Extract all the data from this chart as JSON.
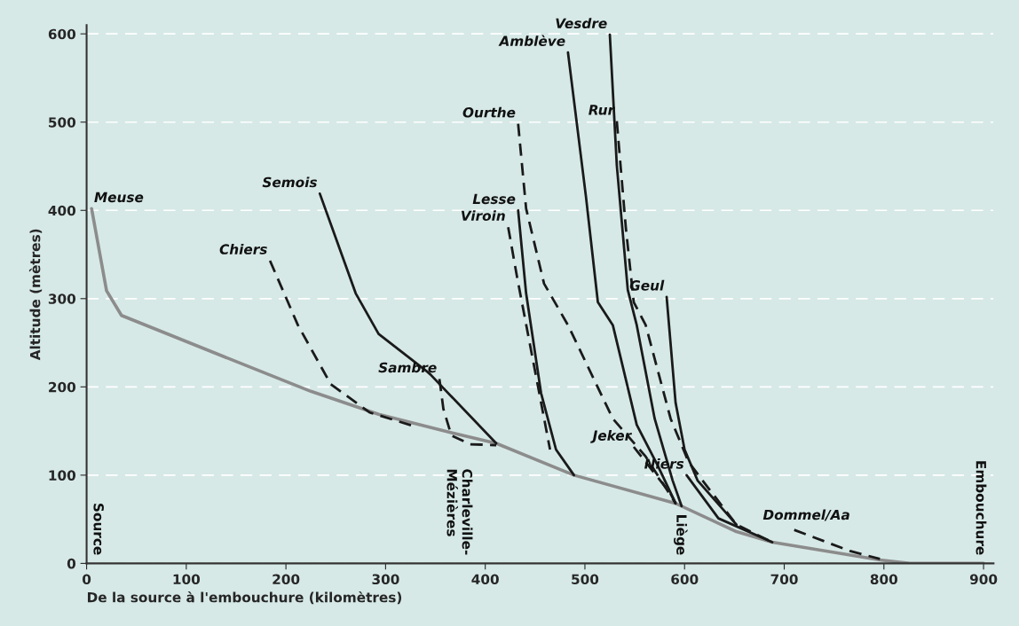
{
  "chart_data": {
    "type": "line",
    "xlabel": "De la source à l'embouchure (kilomètres)",
    "ylabel": "Altitude (mètres)",
    "xlim": [
      0,
      910
    ],
    "ylim": [
      0,
      610
    ],
    "xticks": [
      0,
      100,
      200,
      300,
      400,
      500,
      600,
      700,
      800,
      900
    ],
    "yticks": [
      0,
      100,
      200,
      300,
      400,
      500,
      600
    ],
    "grid": "y",
    "legend": false,
    "marker": "none",
    "series": [
      {
        "name": "Meuse",
        "color": "#8c8c8c",
        "line_style": "solid",
        "x": [
          5,
          20,
          35,
          134,
          225,
          293,
          366,
          411,
          489,
          591,
          652,
          688,
          796,
          826,
          900
        ],
        "values": [
          402,
          309,
          281,
          236,
          195,
          169,
          148,
          136,
          100,
          68,
          36,
          24,
          4,
          0,
          0
        ]
      },
      {
        "name": "Chiers",
        "color": "#1a1a1a",
        "line_style": "dashed",
        "x": [
          184,
          212,
          245,
          284,
          330
        ],
        "values": [
          343,
          270,
          203,
          171,
          155
        ]
      },
      {
        "name": "Semois",
        "color": "#1a1a1a",
        "line_style": "solid",
        "x": [
          234,
          270,
          293,
          342,
          345,
          411
        ],
        "values": [
          419,
          306,
          260,
          217,
          214,
          136
        ]
      },
      {
        "name": "Sambre",
        "color": "#1a1a1a",
        "line_style": "dashed",
        "x": [
          354,
          358,
          366,
          385,
          411
        ],
        "values": [
          209,
          175,
          145,
          135,
          134
        ]
      },
      {
        "name": "Viroin",
        "color": "#1a1a1a",
        "line_style": "dashed",
        "x": [
          423,
          432,
          453,
          465
        ],
        "values": [
          381,
          324,
          200,
          129
        ]
      },
      {
        "name": "Lesse",
        "color": "#1a1a1a",
        "line_style": "solid",
        "x": [
          433,
          441,
          456,
          471,
          489
        ],
        "values": [
          400,
          306,
          193,
          129,
          100
        ]
      },
      {
        "name": "Ourthe",
        "color": "#1a1a1a",
        "line_style": "dashed",
        "x": [
          433,
          441,
          459,
          483,
          528,
          561,
          591
        ],
        "values": [
          498,
          402,
          317,
          270,
          164,
          121,
          68
        ]
      },
      {
        "name": "Amblève",
        "color": "#1a1a1a",
        "line_style": "solid",
        "x": [
          483,
          501,
          513,
          528,
          552,
          573,
          591
        ],
        "values": [
          579,
          416,
          296,
          270,
          157,
          111,
          68
        ]
      },
      {
        "name": "Vesdre",
        "color": "#1a1a1a",
        "line_style": "solid",
        "x": [
          525,
          532,
          543,
          552,
          570,
          588,
          597
        ],
        "values": [
          599,
          451,
          310,
          270,
          164,
          94,
          65
        ]
      },
      {
        "name": "Rur",
        "color": "#1a1a1a",
        "line_style": "dashed",
        "x": [
          532,
          541,
          549,
          561,
          586,
          604,
          618,
          652,
          688
        ],
        "values": [
          501,
          381,
          296,
          270,
          164,
          115,
          94,
          44,
          24
        ]
      },
      {
        "name": "Geul",
        "color": "#1a1a1a",
        "line_style": "solid",
        "x": [
          582,
          591,
          600,
          613,
          652
        ],
        "values": [
          302,
          182,
          129,
          94,
          44
        ]
      },
      {
        "name": "Jeker",
        "color": "#1a1a1a",
        "line_style": "dashed",
        "x": [
          549,
          586,
          591
        ],
        "values": [
          132,
          79,
          68
        ]
      },
      {
        "name": "Niers",
        "color": "#1a1a1a",
        "line_style": "solid",
        "x": [
          602,
          634,
          688
        ],
        "values": [
          100,
          51,
          24
        ]
      },
      {
        "name": "Dommel/Aa",
        "color": "#1a1a1a",
        "line_style": "dashed",
        "x": [
          710,
          766,
          796
        ],
        "values": [
          38,
          14,
          5
        ]
      }
    ],
    "annotations": [
      "Source",
      "Charleville-\nMézières",
      "Liège",
      "Embouchure"
    ]
  }
}
